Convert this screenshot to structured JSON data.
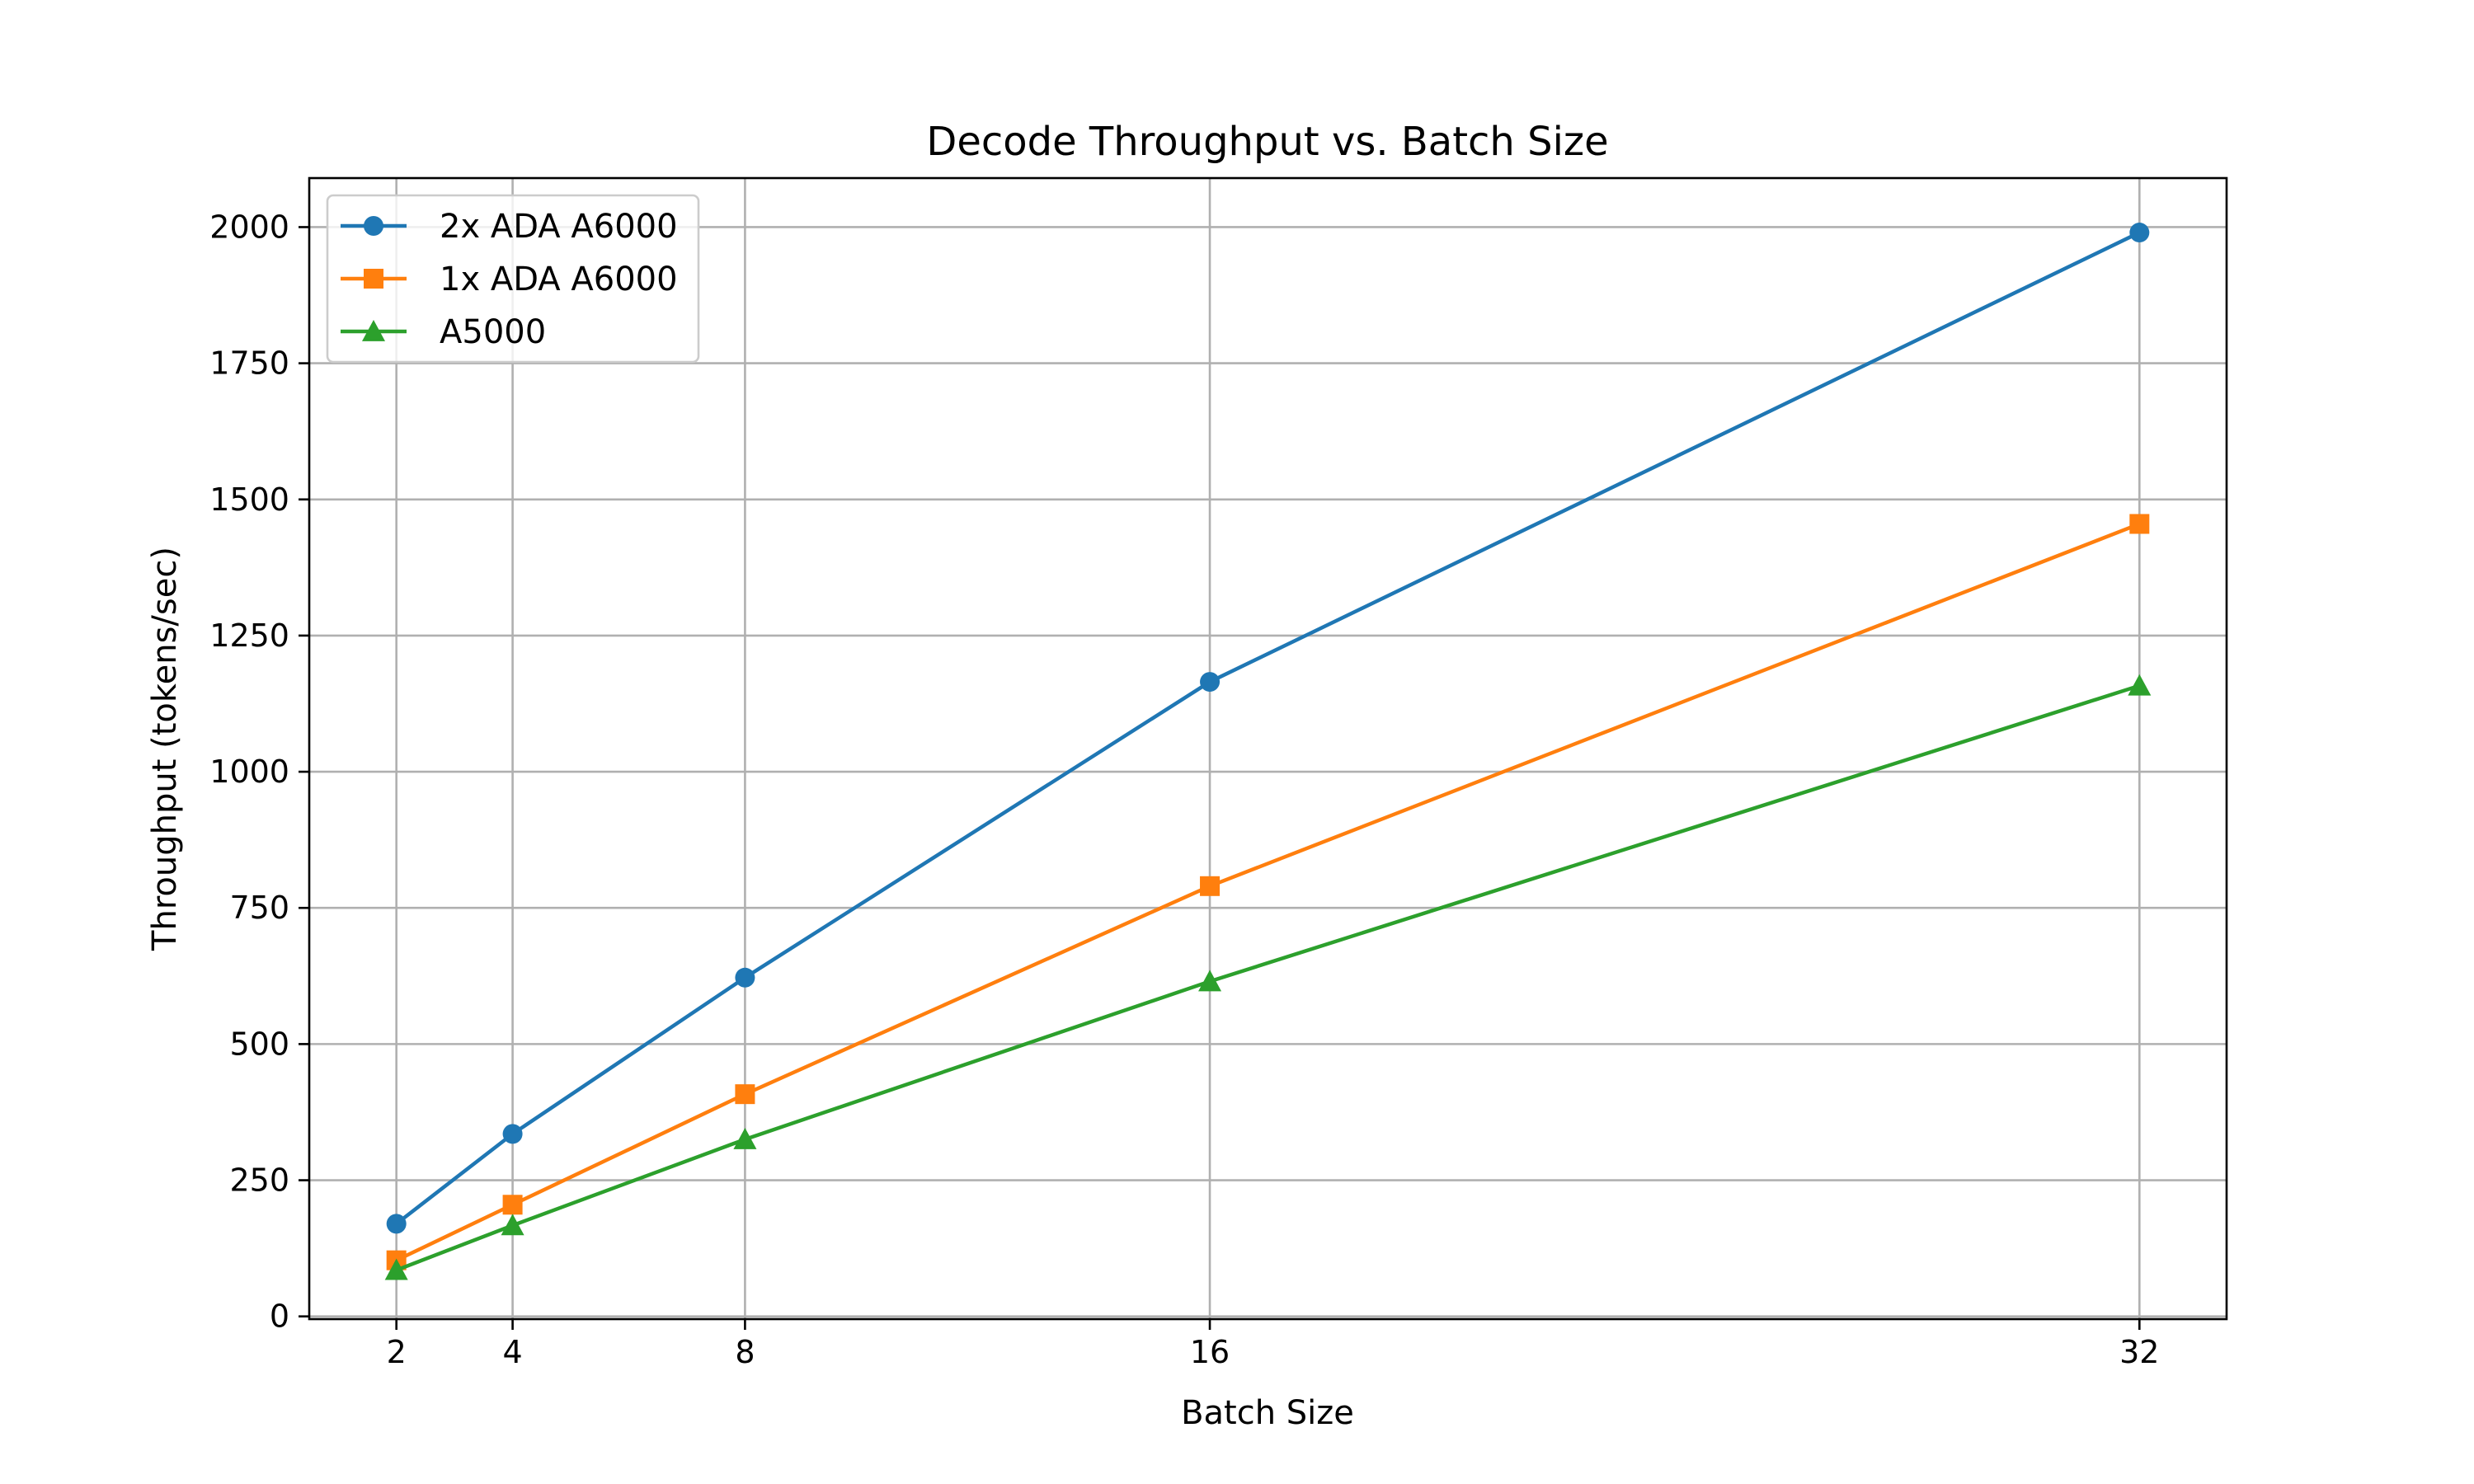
{
  "chart_data": {
    "type": "line",
    "title": "Decode Throughput vs. Batch Size",
    "xlabel": "Batch Size",
    "ylabel": "Throughput (tokens/sec)",
    "x": [
      2,
      4,
      8,
      16,
      32
    ],
    "x_ticks": [
      "2",
      "4",
      "8",
      "16",
      "32"
    ],
    "y_ticks": [
      "0",
      "250",
      "500",
      "750",
      "1000",
      "1250",
      "1500",
      "1750",
      "2000"
    ],
    "xlim": [
      0.5,
      33.5
    ],
    "ylim": [
      -5,
      2090
    ],
    "grid": true,
    "legend_position": "top-left",
    "series": [
      {
        "name": "2x ADA A6000",
        "values": [
          170,
          335,
          622,
          1165,
          1990
        ],
        "color": "#1f77b4",
        "marker": "circle"
      },
      {
        "name": "1x ADA A6000",
        "values": [
          103,
          205,
          408,
          790,
          1455
        ],
        "color": "#ff7f0e",
        "marker": "square"
      },
      {
        "name": "A5000",
        "values": [
          85,
          167,
          325,
          615,
          1158
        ],
        "color": "#2ca02c",
        "marker": "triangle"
      }
    ]
  }
}
